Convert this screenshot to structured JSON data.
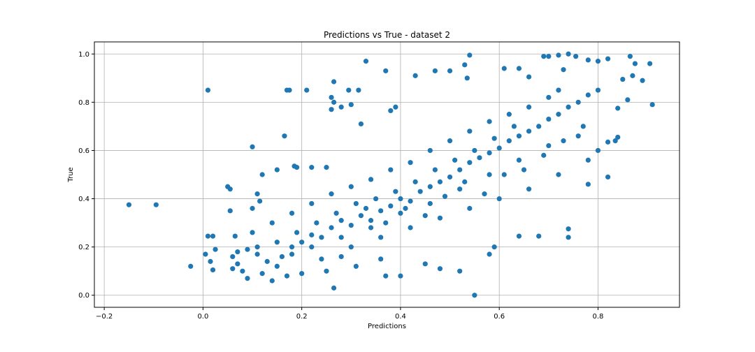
{
  "chart_data": {
    "type": "scatter",
    "title": "Predictions vs True - dataset 2",
    "xlabel": "Predictions",
    "ylabel": "True",
    "xlim": [
      -0.22,
      0.965
    ],
    "ylim": [
      -0.05,
      1.05
    ],
    "xticks": [
      -0.2,
      0.0,
      0.2,
      0.4,
      0.6,
      0.8
    ],
    "xtick_labels": [
      "−0.2",
      "0.0",
      "0.2",
      "0.4",
      "0.6",
      "0.8"
    ],
    "yticks": [
      0.0,
      0.2,
      0.4,
      0.6,
      0.8,
      1.0
    ],
    "ytick_labels": [
      "0.0",
      "0.2",
      "0.4",
      "0.6",
      "0.8",
      "1.0"
    ],
    "grid": true,
    "marker_color": "#1f77b4",
    "series": [
      {
        "points": [
          [
            -0.15,
            0.375
          ],
          [
            -0.095,
            0.375
          ],
          [
            -0.025,
            0.12
          ],
          [
            0.01,
            0.85
          ],
          [
            0.005,
            0.17
          ],
          [
            0.01,
            0.245
          ],
          [
            0.02,
            0.245
          ],
          [
            0.015,
            0.14
          ],
          [
            0.025,
            0.19
          ],
          [
            0.02,
            0.105
          ],
          [
            0.05,
            0.45
          ],
          [
            0.055,
            0.44
          ],
          [
            0.055,
            0.35
          ],
          [
            0.065,
            0.245
          ],
          [
            0.06,
            0.11
          ],
          [
            0.1,
            0.615
          ],
          [
            0.12,
            0.5
          ],
          [
            0.11,
            0.42
          ],
          [
            0.1,
            0.36
          ],
          [
            0.115,
            0.39
          ],
          [
            0.165,
            0.66
          ],
          [
            0.17,
            0.85
          ],
          [
            0.175,
            0.85
          ],
          [
            0.21,
            0.85
          ],
          [
            0.185,
            0.535
          ],
          [
            0.15,
            0.52
          ],
          [
            0.19,
            0.53
          ],
          [
            0.22,
            0.53
          ],
          [
            0.25,
            0.53
          ],
          [
            0.26,
            0.82
          ],
          [
            0.265,
            0.8
          ],
          [
            0.26,
            0.77
          ],
          [
            0.28,
            0.78
          ],
          [
            0.295,
            0.85
          ],
          [
            0.315,
            0.85
          ],
          [
            0.3,
            0.79
          ],
          [
            0.33,
            0.97
          ],
          [
            0.265,
            0.885
          ],
          [
            0.37,
            0.93
          ],
          [
            0.32,
            0.71
          ],
          [
            0.39,
            0.78
          ],
          [
            0.38,
            0.765
          ],
          [
            0.265,
            0.03
          ],
          [
            0.55,
            0.0
          ],
          [
            0.52,
            0.1
          ],
          [
            0.37,
            0.08
          ],
          [
            0.4,
            0.08
          ],
          [
            0.43,
            0.91
          ],
          [
            0.47,
            0.93
          ],
          [
            0.5,
            0.93
          ],
          [
            0.54,
            0.995
          ],
          [
            0.53,
            0.955
          ],
          [
            0.535,
            0.9
          ],
          [
            0.61,
            0.94
          ],
          [
            0.64,
            0.94
          ],
          [
            0.66,
            0.905
          ],
          [
            0.69,
            0.99
          ],
          [
            0.7,
            0.99
          ],
          [
            0.72,
            0.995
          ],
          [
            0.74,
            1.0
          ],
          [
            0.755,
            0.99
          ],
          [
            0.73,
            0.935
          ],
          [
            0.78,
            0.975
          ],
          [
            0.8,
            0.97
          ],
          [
            0.82,
            0.98
          ],
          [
            0.865,
            0.99
          ],
          [
            0.875,
            0.96
          ],
          [
            0.89,
            0.89
          ],
          [
            0.905,
            0.96
          ],
          [
            0.91,
            0.79
          ],
          [
            0.87,
            0.91
          ],
          [
            0.85,
            0.895
          ],
          [
            0.86,
            0.81
          ],
          [
            0.84,
            0.775
          ],
          [
            0.82,
            0.635
          ],
          [
            0.835,
            0.64
          ],
          [
            0.84,
            0.655
          ],
          [
            0.82,
            0.49
          ],
          [
            0.78,
            0.46
          ],
          [
            0.74,
            0.24
          ],
          [
            0.74,
            0.275
          ],
          [
            0.68,
            0.245
          ],
          [
            0.64,
            0.245
          ],
          [
            0.59,
            0.2
          ],
          [
            0.58,
            0.17
          ],
          [
            0.48,
            0.11
          ],
          [
            0.45,
            0.13
          ],
          [
            0.36,
            0.15
          ],
          [
            0.31,
            0.12
          ],
          [
            0.28,
            0.16
          ],
          [
            0.25,
            0.1
          ],
          [
            0.2,
            0.09
          ],
          [
            0.17,
            0.08
          ],
          [
            0.14,
            0.06
          ],
          [
            0.12,
            0.09
          ],
          [
            0.09,
            0.07
          ],
          [
            0.08,
            0.1
          ],
          [
            0.07,
            0.13
          ],
          [
            0.06,
            0.16
          ],
          [
            0.07,
            0.18
          ],
          [
            0.09,
            0.19
          ],
          [
            0.11,
            0.17
          ],
          [
            0.13,
            0.14
          ],
          [
            0.15,
            0.12
          ],
          [
            0.16,
            0.16
          ],
          [
            0.18,
            0.2
          ],
          [
            0.2,
            0.22
          ],
          [
            0.22,
            0.25
          ],
          [
            0.24,
            0.24
          ],
          [
            0.26,
            0.28
          ],
          [
            0.28,
            0.31
          ],
          [
            0.3,
            0.29
          ],
          [
            0.32,
            0.33
          ],
          [
            0.34,
            0.31
          ],
          [
            0.36,
            0.35
          ],
          [
            0.38,
            0.37
          ],
          [
            0.4,
            0.4
          ],
          [
            0.42,
            0.39
          ],
          [
            0.44,
            0.43
          ],
          [
            0.46,
            0.45
          ],
          [
            0.48,
            0.47
          ],
          [
            0.5,
            0.49
          ],
          [
            0.52,
            0.52
          ],
          [
            0.54,
            0.55
          ],
          [
            0.56,
            0.57
          ],
          [
            0.58,
            0.59
          ],
          [
            0.6,
            0.61
          ],
          [
            0.62,
            0.64
          ],
          [
            0.64,
            0.66
          ],
          [
            0.66,
            0.68
          ],
          [
            0.68,
            0.7
          ],
          [
            0.7,
            0.73
          ],
          [
            0.72,
            0.75
          ],
          [
            0.74,
            0.78
          ],
          [
            0.76,
            0.8
          ],
          [
            0.78,
            0.83
          ],
          [
            0.8,
            0.85
          ],
          [
            0.72,
            0.85
          ],
          [
            0.7,
            0.82
          ],
          [
            0.66,
            0.78
          ],
          [
            0.62,
            0.75
          ],
          [
            0.58,
            0.72
          ],
          [
            0.54,
            0.68
          ],
          [
            0.5,
            0.64
          ],
          [
            0.46,
            0.6
          ],
          [
            0.42,
            0.55
          ],
          [
            0.38,
            0.52
          ],
          [
            0.34,
            0.48
          ],
          [
            0.3,
            0.45
          ],
          [
            0.26,
            0.42
          ],
          [
            0.22,
            0.38
          ],
          [
            0.18,
            0.34
          ],
          [
            0.14,
            0.3
          ],
          [
            0.1,
            0.26
          ],
          [
            0.24,
            0.15
          ],
          [
            0.3,
            0.2
          ],
          [
            0.36,
            0.24
          ],
          [
            0.42,
            0.28
          ],
          [
            0.48,
            0.32
          ],
          [
            0.54,
            0.36
          ],
          [
            0.6,
            0.4
          ],
          [
            0.66,
            0.44
          ],
          [
            0.72,
            0.5
          ],
          [
            0.78,
            0.56
          ],
          [
            0.8,
            0.6
          ],
          [
            0.76,
            0.66
          ],
          [
            0.7,
            0.62
          ],
          [
            0.64,
            0.56
          ],
          [
            0.58,
            0.5
          ],
          [
            0.52,
            0.44
          ],
          [
            0.46,
            0.38
          ],
          [
            0.4,
            0.34
          ],
          [
            0.34,
            0.28
          ],
          [
            0.28,
            0.24
          ],
          [
            0.22,
            0.2
          ],
          [
            0.18,
            0.17
          ],
          [
            0.33,
            0.36
          ],
          [
            0.37,
            0.3
          ],
          [
            0.41,
            0.36
          ],
          [
            0.45,
            0.33
          ],
          [
            0.49,
            0.41
          ],
          [
            0.53,
            0.47
          ],
          [
            0.57,
            0.42
          ],
          [
            0.61,
            0.5
          ],
          [
            0.65,
            0.52
          ],
          [
            0.69,
            0.58
          ],
          [
            0.73,
            0.64
          ],
          [
            0.77,
            0.7
          ],
          [
            0.63,
            0.7
          ],
          [
            0.59,
            0.65
          ],
          [
            0.55,
            0.6
          ],
          [
            0.51,
            0.56
          ],
          [
            0.47,
            0.52
          ],
          [
            0.43,
            0.47
          ],
          [
            0.39,
            0.43
          ],
          [
            0.35,
            0.4
          ],
          [
            0.31,
            0.38
          ],
          [
            0.27,
            0.34
          ],
          [
            0.23,
            0.3
          ],
          [
            0.19,
            0.26
          ],
          [
            0.15,
            0.22
          ],
          [
            0.11,
            0.2
          ]
        ]
      }
    ]
  }
}
